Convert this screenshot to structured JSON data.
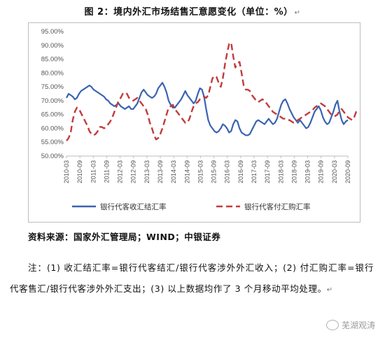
{
  "figure": {
    "title": "图 2：境内外汇市场结售汇意愿变化（单位：%）",
    "title_mark": "↵"
  },
  "chart_data": {
    "type": "line",
    "title": "",
    "xlabel": "",
    "ylabel": "",
    "ylim": [
      50,
      95
    ],
    "yticks": [
      "50.00%",
      "55.00%",
      "60.00%",
      "65.00%",
      "70.00%",
      "75.00%",
      "80.00%",
      "85.00%",
      "90.00%",
      "95.00%"
    ],
    "xticks": [
      "2010-03",
      "2010-09",
      "2011-03",
      "2011-09",
      "2012-03",
      "2012-09",
      "2013-03",
      "2013-09",
      "2014-03",
      "2014-09",
      "2015-03",
      "2015-09",
      "2016-03",
      "2016-09",
      "2017-03",
      "2017-09",
      "2018-03",
      "2018-09",
      "2019-03",
      "2019-09",
      "2020-03",
      "2020-09"
    ],
    "x_start_label": "2010-03",
    "x_end_label": "2020-09",
    "legend_position": "bottom",
    "grid": false,
    "series": [
      {
        "name": "银行代客收汇结汇率",
        "color": "#3a63b3",
        "style": "solid",
        "values": [
          71.0,
          72.5,
          72.0,
          71.5,
          70.5,
          71.0,
          72.5,
          73.5,
          74.0,
          74.5,
          75.0,
          75.5,
          75.0,
          74.0,
          73.5,
          73.0,
          72.5,
          72.0,
          71.5,
          70.5,
          70.0,
          69.0,
          68.5,
          68.0,
          68.5,
          69.0,
          68.0,
          67.5,
          67.0,
          67.5,
          68.0,
          67.0,
          67.0,
          68.0,
          69.0,
          71.0,
          73.0,
          74.0,
          73.0,
          72.0,
          71.5,
          71.0,
          71.5,
          72.5,
          74.5,
          75.5,
          76.5,
          75.0,
          73.0,
          70.0,
          68.5,
          67.5,
          67.5,
          68.5,
          69.5,
          70.5,
          72.0,
          73.5,
          72.0,
          71.0,
          70.0,
          69.0,
          70.0,
          72.5,
          74.5,
          74.0,
          71.5,
          67.0,
          63.0,
          61.0,
          60.0,
          59.0,
          58.5,
          59.0,
          60.0,
          61.5,
          61.0,
          60.0,
          58.5,
          59.0,
          61.5,
          63.0,
          62.5,
          60.0,
          58.5,
          58.0,
          57.5,
          57.5,
          58.0,
          59.5,
          61.0,
          62.5,
          63.0,
          62.5,
          62.0,
          61.5,
          62.5,
          63.5,
          62.5,
          61.5,
          62.0,
          63.5,
          66.0,
          68.5,
          70.0,
          70.5,
          69.0,
          67.0,
          65.5,
          64.0,
          63.0,
          62.0,
          63.0,
          62.0,
          61.0,
          60.0,
          60.5,
          62.0,
          64.0,
          66.0,
          67.0,
          68.0,
          66.5,
          64.0,
          62.5,
          61.5,
          62.0,
          64.0,
          66.0,
          68.5,
          70.0,
          66.0,
          63.0,
          61.5,
          62.5,
          63.0
        ]
      },
      {
        "name": "银行代客付汇购汇率",
        "color": "#c23b3b",
        "style": "dashed",
        "values": [
          55.5,
          56.5,
          58.5,
          63.0,
          66.0,
          67.5,
          67.0,
          65.5,
          64.0,
          62.5,
          61.0,
          59.0,
          58.0,
          57.5,
          58.0,
          59.0,
          60.5,
          60.5,
          60.0,
          60.5,
          61.5,
          62.5,
          64.0,
          66.0,
          68.0,
          70.0,
          71.0,
          72.5,
          73.0,
          72.5,
          71.0,
          70.5,
          70.0,
          70.5,
          71.0,
          70.0,
          69.0,
          68.0,
          67.0,
          65.0,
          62.0,
          60.0,
          57.5,
          56.0,
          56.5,
          58.0,
          60.0,
          62.5,
          65.0,
          67.5,
          68.0,
          68.5,
          67.0,
          66.0,
          65.0,
          64.0,
          63.0,
          62.0,
          62.0,
          63.5,
          66.0,
          68.0,
          69.0,
          69.5,
          70.5,
          71.0,
          71.5,
          71.0,
          72.0,
          75.0,
          78.0,
          79.0,
          78.5,
          76.5,
          75.0,
          78.0,
          83.0,
          87.0,
          90.5,
          91.0,
          86.0,
          82.0,
          83.5,
          84.0,
          80.0,
          75.5,
          74.0,
          74.0,
          73.5,
          72.0,
          71.0,
          70.0,
          69.5,
          70.0,
          70.5,
          70.0,
          69.0,
          68.0,
          67.0,
          66.0,
          65.5,
          65.0,
          64.5,
          64.0,
          63.5,
          63.5,
          63.0,
          63.0,
          62.5,
          62.0,
          62.5,
          63.0,
          63.5,
          64.0,
          64.5,
          65.0,
          65.5,
          66.0,
          66.5,
          67.5,
          68.0,
          68.5,
          69.0,
          68.5,
          68.0,
          67.0,
          66.0,
          65.0,
          64.5,
          64.5,
          65.0,
          66.5,
          67.0,
          66.0,
          65.0,
          64.0,
          63.5,
          63.0,
          64.0,
          66.0,
          66.5
        ]
      }
    ]
  },
  "source": "资料来源：国家外汇管理局；WIND；中银证券",
  "notes": "注：(1) 收汇结汇率=银行代客结汇/银行代客涉外外汇收入；(2) 付汇购汇率=银行代客售汇/银行代客涉外外汇支出；(3) 以上数据均作了 3 个月移动平均处理。",
  "notes_mark": "↵",
  "watermark": "芜湖观涛"
}
